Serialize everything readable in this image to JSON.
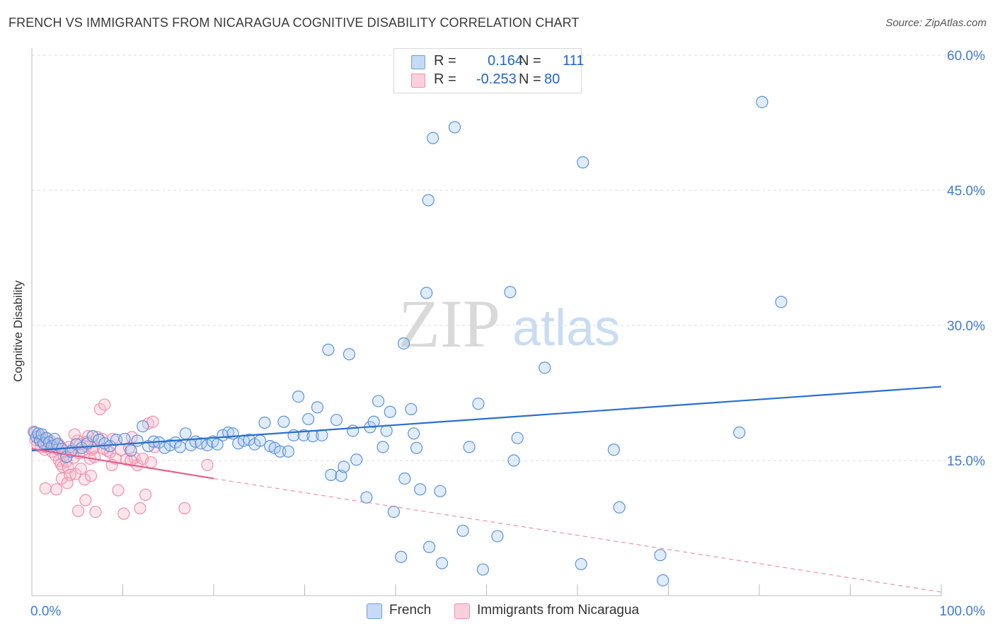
{
  "header": {
    "title": "FRENCH VS IMMIGRANTS FROM NICARAGUA COGNITIVE DISABILITY CORRELATION CHART",
    "source": "Source: ZipAtlas.com"
  },
  "watermark": {
    "zip": "ZIP",
    "atlas": "atlas"
  },
  "legend": {
    "rows": [
      {
        "r_label": "R =",
        "r_value": "0.164",
        "n_label": "N =",
        "n_value": "111",
        "color": "#a9c8f2"
      },
      {
        "r_label": "R =",
        "r_value": "-0.253",
        "n_label": "N =",
        "n_value": "80",
        "color": "#f7b8c9"
      }
    ]
  },
  "bottom_legend": [
    {
      "label": "French",
      "color": "#a9c8f2"
    },
    {
      "label": "Immigrants from Nicaragua",
      "color": "#f7b8c9"
    }
  ],
  "colors": {
    "blue": "#5b93d8",
    "blue_line": "#2a6fd0",
    "pink": "#f08fae",
    "pink_line": "#e8608a",
    "tick_label": "#3e7bd0",
    "grid": "#dddddd"
  },
  "chart_data": {
    "type": "scatter",
    "title": "FRENCH VS IMMIGRANTS FROM NICARAGUA COGNITIVE DISABILITY CORRELATION CHART",
    "xlabel": "",
    "ylabel": "Cognitive Disability",
    "xlim": [
      0,
      100
    ],
    "ylim": [
      0,
      60
    ],
    "x_tick_labels": [
      "0.0%",
      "100.0%"
    ],
    "y_ticks": [
      15,
      30,
      45,
      60
    ],
    "y_tick_labels": [
      "15.0%",
      "30.0%",
      "45.0%",
      "60.0%"
    ],
    "grid": "horizontal dashed",
    "series": [
      {
        "name": "French",
        "color": "#5b93d8",
        "trend": {
          "x": [
            0,
            100
          ],
          "y": [
            16.1,
            23.2
          ],
          "style": "solid"
        },
        "points": [
          [
            0.3,
            18.1
          ],
          [
            0.5,
            17.6
          ],
          [
            0.7,
            18.0
          ],
          [
            0.9,
            17.2
          ],
          [
            1.1,
            17.9
          ],
          [
            1.3,
            16.9
          ],
          [
            1.6,
            17.5
          ],
          [
            1.9,
            17.0
          ],
          [
            2.2,
            16.6
          ],
          [
            2.5,
            17.4
          ],
          [
            2.8,
            16.8
          ],
          [
            3.3,
            16.3
          ],
          [
            3.8,
            15.4
          ],
          [
            4.3,
            16.0
          ],
          [
            4.9,
            16.8
          ],
          [
            5.5,
            16.4
          ],
          [
            6.1,
            16.9
          ],
          [
            6.7,
            17.7
          ],
          [
            7.4,
            17.3
          ],
          [
            8.0,
            16.9
          ],
          [
            8.6,
            16.6
          ],
          [
            9.3,
            17.3
          ],
          [
            10.2,
            17.4
          ],
          [
            10.9,
            16.1
          ],
          [
            11.6,
            17.2
          ],
          [
            12.2,
            18.8
          ],
          [
            12.8,
            16.6
          ],
          [
            13.4,
            17.1
          ],
          [
            14.0,
            17.0
          ],
          [
            14.6,
            16.4
          ],
          [
            15.2,
            16.7
          ],
          [
            15.8,
            17.0
          ],
          [
            16.3,
            16.5
          ],
          [
            16.9,
            18.0
          ],
          [
            17.5,
            16.7
          ],
          [
            18.0,
            17.1
          ],
          [
            18.6,
            16.9
          ],
          [
            19.3,
            16.7
          ],
          [
            19.9,
            17.1
          ],
          [
            20.4,
            16.8
          ],
          [
            21.0,
            17.8
          ],
          [
            21.6,
            18.1
          ],
          [
            22.1,
            18.0
          ],
          [
            22.7,
            16.9
          ],
          [
            23.3,
            17.2
          ],
          [
            23.9,
            17.3
          ],
          [
            24.5,
            16.8
          ],
          [
            25.1,
            17.2
          ],
          [
            25.6,
            19.2
          ],
          [
            26.2,
            16.6
          ],
          [
            26.7,
            16.4
          ],
          [
            27.3,
            16.0
          ],
          [
            27.7,
            19.3
          ],
          [
            28.2,
            16.0
          ],
          [
            28.8,
            17.8
          ],
          [
            29.3,
            22.1
          ],
          [
            29.9,
            17.8
          ],
          [
            30.4,
            19.6
          ],
          [
            30.9,
            17.7
          ],
          [
            31.4,
            20.9
          ],
          [
            31.9,
            17.8
          ],
          [
            32.6,
            27.3
          ],
          [
            32.9,
            13.4
          ],
          [
            33.5,
            19.5
          ],
          [
            34.0,
            13.3
          ],
          [
            34.3,
            14.3
          ],
          [
            34.9,
            26.8
          ],
          [
            35.3,
            18.3
          ],
          [
            35.7,
            15.1
          ],
          [
            36.8,
            10.9
          ],
          [
            37.2,
            18.7
          ],
          [
            37.6,
            19.3
          ],
          [
            38.1,
            21.6
          ],
          [
            38.6,
            16.5
          ],
          [
            39.0,
            18.3
          ],
          [
            39.4,
            20.4
          ],
          [
            39.8,
            9.3
          ],
          [
            40.6,
            4.3
          ],
          [
            40.9,
            28.0
          ],
          [
            41.0,
            13.0
          ],
          [
            41.7,
            20.7
          ],
          [
            42.0,
            18.0
          ],
          [
            42.3,
            16.4
          ],
          [
            42.7,
            11.8
          ],
          [
            43.4,
            33.6
          ],
          [
            43.7,
            5.4
          ],
          [
            43.6,
            43.9
          ],
          [
            44.9,
            11.6
          ],
          [
            45.1,
            3.6
          ],
          [
            44.1,
            50.8
          ],
          [
            46.5,
            52.0
          ],
          [
            47.4,
            7.2
          ],
          [
            48.1,
            16.5
          ],
          [
            49.1,
            21.3
          ],
          [
            49.6,
            2.9
          ],
          [
            51.2,
            6.6
          ],
          [
            52.6,
            33.7
          ],
          [
            53.0,
            15.0
          ],
          [
            53.4,
            17.5
          ],
          [
            56.4,
            25.3
          ],
          [
            60.4,
            3.5
          ],
          [
            60.6,
            48.1
          ],
          [
            64.0,
            16.2
          ],
          [
            64.6,
            9.8
          ],
          [
            69.1,
            4.5
          ],
          [
            69.4,
            1.7
          ],
          [
            77.8,
            18.1
          ],
          [
            80.3,
            54.8
          ],
          [
            82.4,
            32.6
          ]
        ]
      },
      {
        "name": "Immigrants from Nicaragua",
        "color": "#f08fae",
        "trend": {
          "x": [
            0,
            20
          ],
          "y": [
            16.3,
            13.0
          ],
          "style": "solid",
          "extension": {
            "x": [
              20,
              100
            ],
            "y": [
              13.0,
              0.4
            ],
            "style": "dashed"
          }
        },
        "points": [
          [
            0.2,
            18.2
          ],
          [
            0.4,
            17.3
          ],
          [
            0.6,
            16.8
          ],
          [
            0.8,
            17.6
          ],
          [
            1.0,
            16.5
          ],
          [
            1.2,
            17.0
          ],
          [
            1.4,
            16.2
          ],
          [
            1.6,
            16.8
          ],
          [
            1.8,
            16.4
          ],
          [
            2.0,
            17.2
          ],
          [
            2.2,
            16.0
          ],
          [
            2.4,
            16.7
          ],
          [
            2.6,
            15.6
          ],
          [
            2.8,
            16.3
          ],
          [
            3.0,
            15.0
          ],
          [
            3.1,
            16.6
          ],
          [
            3.2,
            14.6
          ],
          [
            3.3,
            13.0
          ],
          [
            3.4,
            14.3
          ],
          [
            3.5,
            15.6
          ],
          [
            3.6,
            16.0
          ],
          [
            3.8,
            14.9
          ],
          [
            4.0,
            14.2
          ],
          [
            4.2,
            13.4
          ],
          [
            4.4,
            16.2
          ],
          [
            4.6,
            15.3
          ],
          [
            4.8,
            13.5
          ],
          [
            5.0,
            17.2
          ],
          [
            5.2,
            15.8
          ],
          [
            5.4,
            14.1
          ],
          [
            5.6,
            16.1
          ],
          [
            5.8,
            12.9
          ],
          [
            6.0,
            16.6
          ],
          [
            6.2,
            17.7
          ],
          [
            6.4,
            15.2
          ],
          [
            6.6,
            16.2
          ],
          [
            6.9,
            15.4
          ],
          [
            7.2,
            17.6
          ],
          [
            7.5,
            20.7
          ],
          [
            7.7,
            17.4
          ],
          [
            8.0,
            21.2
          ],
          [
            8.3,
            16.1
          ],
          [
            8.6,
            15.9
          ],
          [
            8.9,
            17.4
          ],
          [
            9.2,
            15.2
          ],
          [
            9.5,
            11.7
          ],
          [
            9.8,
            16.2
          ],
          [
            10.1,
            9.1
          ],
          [
            10.4,
            15.1
          ],
          [
            10.7,
            16.4
          ],
          [
            11.0,
            17.6
          ],
          [
            11.3,
            15.3
          ],
          [
            11.6,
            14.5
          ],
          [
            11.9,
            9.7
          ],
          [
            12.2,
            15.2
          ],
          [
            12.5,
            11.2
          ],
          [
            12.8,
            19.1
          ],
          [
            13.1,
            14.8
          ],
          [
            13.3,
            19.3
          ],
          [
            13.5,
            16.5
          ],
          [
            1.5,
            11.9
          ],
          [
            2.7,
            11.8
          ],
          [
            3.9,
            12.5
          ],
          [
            5.1,
            9.4
          ],
          [
            5.9,
            10.6
          ],
          [
            6.5,
            13.3
          ],
          [
            7.0,
            9.3
          ],
          [
            8.8,
            14.5
          ],
          [
            10.9,
            15.0
          ],
          [
            16.8,
            9.7
          ],
          [
            19.3,
            14.5
          ],
          [
            0.9,
            17.8
          ],
          [
            1.7,
            17.4
          ],
          [
            2.9,
            16.9
          ],
          [
            4.1,
            16.5
          ],
          [
            4.7,
            17.9
          ],
          [
            5.3,
            16.8
          ],
          [
            6.1,
            17.1
          ],
          [
            6.8,
            16.4
          ],
          [
            7.9,
            16.3
          ]
        ]
      }
    ]
  }
}
